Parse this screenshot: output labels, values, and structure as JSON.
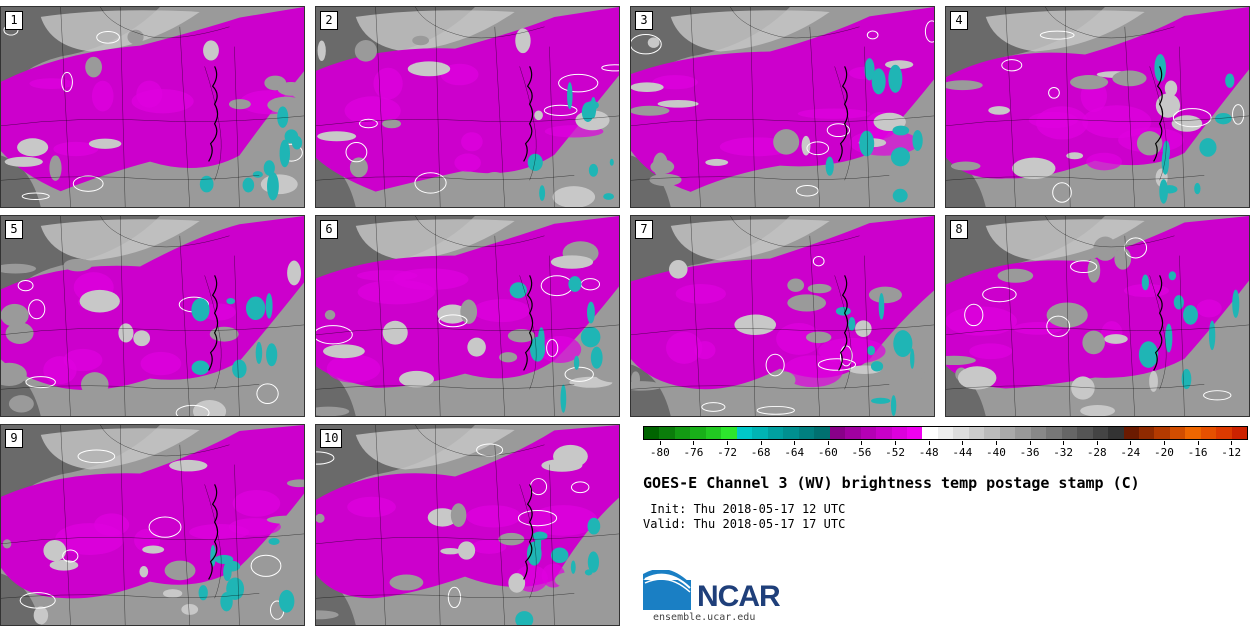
{
  "panels": [
    {
      "label": "1"
    },
    {
      "label": "2"
    },
    {
      "label": "3"
    },
    {
      "label": "4"
    },
    {
      "label": "5"
    },
    {
      "label": "6"
    },
    {
      "label": "7"
    },
    {
      "label": "8"
    },
    {
      "label": "9"
    },
    {
      "label": "10"
    }
  ],
  "colorbar": {
    "colors": [
      "#006400",
      "#0b7d0b",
      "#139a13",
      "#19b019",
      "#22c922",
      "#2de62d",
      "#00c8c8",
      "#00b4b4",
      "#00a0a0",
      "#009090",
      "#008080",
      "#007070",
      "#880088",
      "#a000a0",
      "#b400b4",
      "#c800c8",
      "#dc00dc",
      "#f000f0",
      "#ffffff",
      "#eeeeee",
      "#dddddd",
      "#cccccc",
      "#bbbbbb",
      "#aaaaaa",
      "#999999",
      "#888888",
      "#777777",
      "#666666",
      "#555555",
      "#444444",
      "#333333",
      "#6b1a00",
      "#8f2a00",
      "#b33a00",
      "#d14d00",
      "#ee6600",
      "#e65000",
      "#dd3a00",
      "#cc2200"
    ],
    "ticks": [
      "-80",
      "-76",
      "-72",
      "-68",
      "-64",
      "-60",
      "-56",
      "-52",
      "-48",
      "-44",
      "-40",
      "-36",
      "-32",
      "-28",
      "-24",
      "-20",
      "-16",
      "-12"
    ],
    "min": -82,
    "max": -10
  },
  "title": "GOES-E Channel 3 (WV) brightness temp postage stamp (C)",
  "init": " Init: Thu 2018-05-17 12 UTC",
  "valid": "Valid: Thu 2018-05-17 17 UTC",
  "logo": {
    "name": "NCAR",
    "url": "ensemble.ucar.edu"
  },
  "map_colors": {
    "magenta": "#cc00cc",
    "magenta_light": "#e000e0",
    "gray_light": "#c8c8c8",
    "gray_mid": "#9a9a9a",
    "gray_dark": "#6a6a6a",
    "cyan": "#1fb5b5",
    "white": "#ffffff"
  }
}
